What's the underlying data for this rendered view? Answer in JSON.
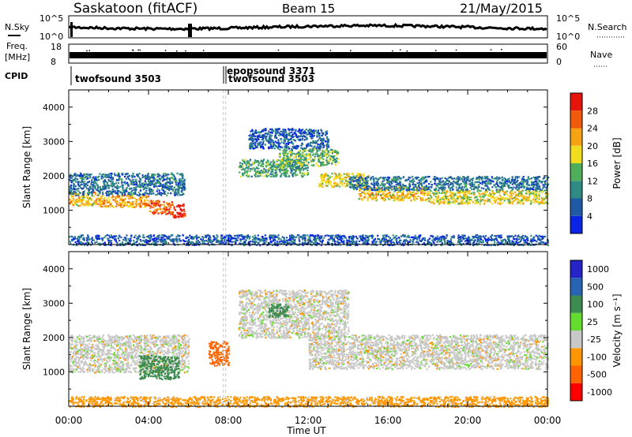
{
  "header": {
    "site": "Saskatoon (fitACF)",
    "beam": "Beam 15",
    "date": "21/May/2015"
  },
  "strip_labels": {
    "nsky": "N.Sky",
    "nsky_top": "10^5",
    "nsky_bottom": "10^0",
    "nsearch": "N.Search",
    "nsearch_top": "10^5",
    "nsearch_bottom": "10^0",
    "freq_line1": "Freq.",
    "freq_line2": "[MHz]",
    "freq_top": "18",
    "freq_bottom": "8",
    "nave": "Nave",
    "nave_top": "60",
    "nave_bottom": "0",
    "cpid": "CPID",
    "cpid_entries": [
      "twofsound 3503",
      "epopsound 3371",
      "twofsound 3503"
    ]
  },
  "colors": {
    "power": [
      "#0a24e6",
      "#1e5aa5",
      "#2e8a82",
      "#4fae5a",
      "#f2dc1e",
      "#f5a312",
      "#f05a0a",
      "#e6140a"
    ],
    "velocity": [
      "#2424c8",
      "#2864b4",
      "#3c8c50",
      "#64dc2d",
      "#c8c8c8",
      "#ff9600",
      "#ff6400",
      "#ff0000"
    ]
  },
  "chart_data": [
    {
      "type": "heatmap",
      "title": "Power",
      "xlabel": "",
      "ylabel": "Slant Range [km]",
      "x_ticks": [
        "00:00",
        "04:00",
        "08:00",
        "12:00",
        "16:00",
        "20:00",
        "00:00"
      ],
      "y_ticks": [
        "1000",
        "2000",
        "3000",
        "4000"
      ],
      "xlim": [
        0,
        24
      ],
      "ylim": [
        0,
        4500
      ],
      "x_unit": "hours UT",
      "colorbar": {
        "label": "Power [dB]",
        "ticks": [
          "4",
          "8",
          "12",
          "16",
          "20",
          "24",
          "28"
        ],
        "range": [
          0,
          32
        ]
      },
      "regions": [
        {
          "x": [
            0.0,
            1.5
          ],
          "y": [
            1150,
            1550
          ],
          "value": 20
        },
        {
          "x": [
            1.5,
            4.0
          ],
          "y": [
            1100,
            1450
          ],
          "value": 22
        },
        {
          "x": [
            4.0,
            5.2
          ],
          "y": [
            900,
            1300
          ],
          "value": 26
        },
        {
          "x": [
            5.2,
            5.8
          ],
          "y": [
            800,
            1200
          ],
          "value": 30
        },
        {
          "x": [
            0.0,
            5.8
          ],
          "y": [
            1450,
            2100
          ],
          "value": 8
        },
        {
          "x": [
            8.5,
            12.0
          ],
          "y": [
            2000,
            2500
          ],
          "value": 12
        },
        {
          "x": [
            10.5,
            13.5
          ],
          "y": [
            2300,
            2800
          ],
          "value": 14
        },
        {
          "x": [
            12.5,
            15.0
          ],
          "y": [
            1700,
            2100
          ],
          "value": 18
        },
        {
          "x": [
            14.5,
            18.0
          ],
          "y": [
            1300,
            1700
          ],
          "value": 20
        },
        {
          "x": [
            18.0,
            24.0
          ],
          "y": [
            1200,
            1600
          ],
          "value": 18
        },
        {
          "x": [
            14.0,
            24.0
          ],
          "y": [
            1600,
            2000
          ],
          "value": 8
        },
        {
          "x": [
            9.0,
            13.0
          ],
          "y": [
            2800,
            3400
          ],
          "value": 6
        },
        {
          "x": [
            0.0,
            24.0
          ],
          "y": [
            0,
            300
          ],
          "value": 6
        }
      ]
    },
    {
      "type": "heatmap",
      "title": "Velocity",
      "xlabel": "Time UT",
      "ylabel": "Slant Range [km]",
      "x_ticks": [
        "00:00",
        "04:00",
        "08:00",
        "12:00",
        "16:00",
        "20:00",
        "00:00"
      ],
      "y_ticks": [
        "1000",
        "2000",
        "3000",
        "4000"
      ],
      "xlim": [
        0,
        24
      ],
      "ylim": [
        0,
        4500
      ],
      "x_unit": "hours UT",
      "colorbar": {
        "label": "Velocity [m s⁻¹]",
        "ticks": [
          "1000",
          "500",
          "100",
          "25",
          "-25",
          "-100",
          "-500",
          "-1000"
        ]
      },
      "regions": [
        {
          "x": [
            0.0,
            6.0
          ],
          "y": [
            1000,
            2100
          ],
          "value": 0
        },
        {
          "x": [
            3.5,
            5.5
          ],
          "y": [
            800,
            1500
          ],
          "value": 100
        },
        {
          "x": [
            7.0,
            8.0
          ],
          "y": [
            1200,
            1900
          ],
          "value": -300
        },
        {
          "x": [
            8.5,
            14.0
          ],
          "y": [
            2000,
            3400
          ],
          "value": 0
        },
        {
          "x": [
            12.0,
            24.0
          ],
          "y": [
            1100,
            2100
          ],
          "value": 0
        },
        {
          "x": [
            10.0,
            11.0
          ],
          "y": [
            2600,
            3000
          ],
          "value": 100
        },
        {
          "x": [
            0.0,
            24.0
          ],
          "y": [
            0,
            300
          ],
          "value": -50
        }
      ]
    }
  ]
}
